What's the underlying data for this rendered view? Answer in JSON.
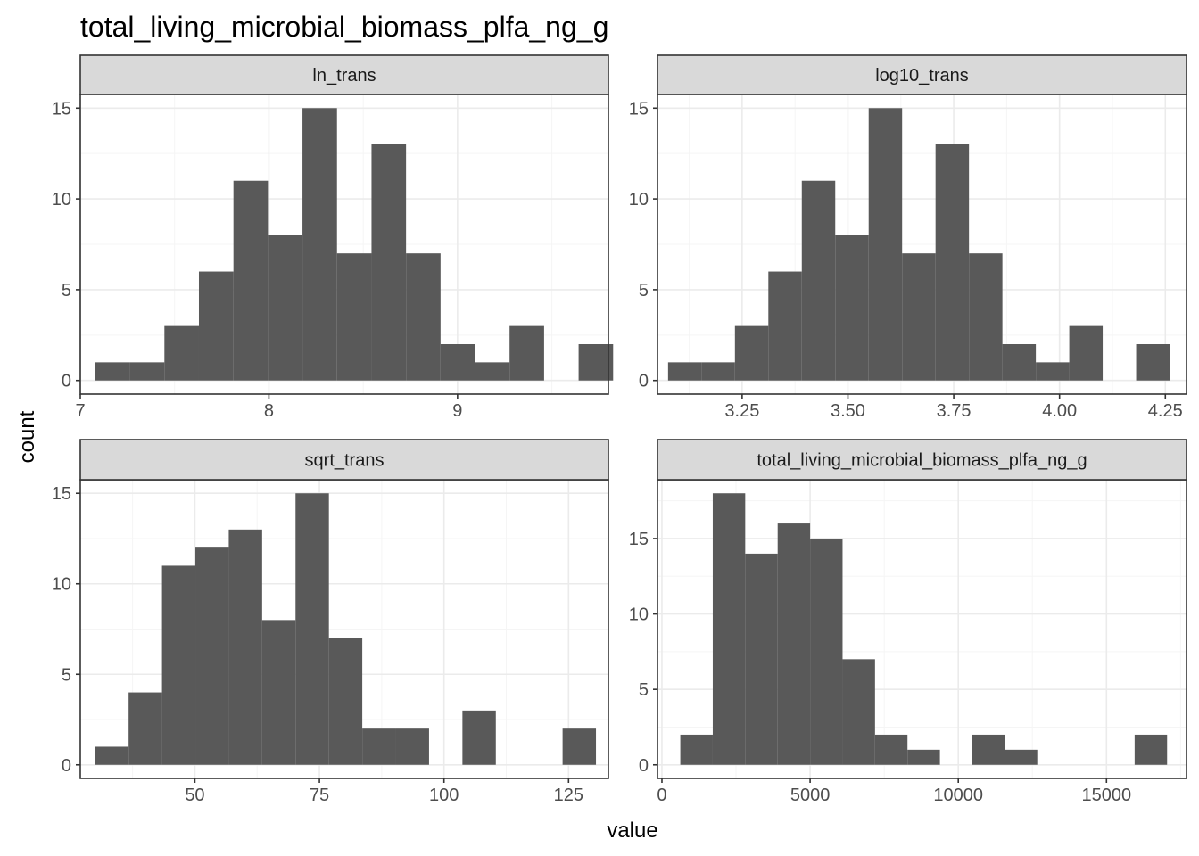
{
  "title": "total_living_microbial_biomass_plfa_ng_g",
  "xlabel": "value",
  "ylabel": "count",
  "colors": {
    "bar": "#595959",
    "strip_bg": "#d9d9d9",
    "panel_border": "#333333",
    "grid_major": "#ebebeb",
    "grid_minor": "#f5f5f5",
    "tick_text": "#4d4d4d",
    "text": "#000000"
  },
  "chart_data": [
    {
      "type": "bar",
      "facet": "ln_trans",
      "xlim": [
        7.0,
        9.8
      ],
      "ylim": [
        0,
        15
      ],
      "x_ticks": [
        7,
        8,
        9
      ],
      "x_tick_labels": [
        "7",
        "8",
        "9"
      ],
      "y_ticks": [
        0,
        5,
        10,
        15
      ],
      "y_tick_labels": [
        "0",
        "5",
        "10",
        "15"
      ],
      "bin_edges": [
        7.08,
        7.263,
        7.446,
        7.629,
        7.812,
        7.995,
        8.178,
        8.361,
        8.544,
        8.727,
        8.91,
        9.093,
        9.276,
        9.459,
        9.642,
        9.825
      ],
      "counts": [
        1,
        1,
        3,
        6,
        11,
        8,
        15,
        7,
        13,
        7,
        2,
        1,
        3,
        0,
        2
      ]
    },
    {
      "type": "bar",
      "facet": "log10_trans",
      "xlim": [
        3.05,
        4.3
      ],
      "ylim": [
        0,
        15
      ],
      "x_ticks": [
        3.25,
        3.5,
        3.75,
        4.0,
        4.25
      ],
      "x_tick_labels": [
        "3.25",
        "3.50",
        "3.75",
        "4.00",
        "4.25"
      ],
      "y_ticks": [
        0,
        5,
        10,
        15
      ],
      "y_tick_labels": [
        "0",
        "5",
        "10",
        "15"
      ],
      "bin_edges": [
        3.075,
        3.154,
        3.233,
        3.312,
        3.391,
        3.47,
        3.549,
        3.628,
        3.707,
        3.786,
        3.865,
        3.944,
        4.023,
        4.102,
        4.181,
        4.26
      ],
      "counts": [
        1,
        1,
        3,
        6,
        11,
        8,
        15,
        7,
        13,
        7,
        2,
        1,
        3,
        0,
        2
      ]
    },
    {
      "type": "bar",
      "facet": "sqrt_trans",
      "xlim": [
        27.0,
        133.0
      ],
      "ylim": [
        0,
        15
      ],
      "x_ticks": [
        50,
        75,
        100,
        125
      ],
      "x_tick_labels": [
        "50",
        "75",
        "100",
        "125"
      ],
      "y_ticks": [
        0,
        5,
        10,
        15
      ],
      "y_tick_labels": [
        "0",
        "5",
        "10",
        "15"
      ],
      "bin_edges": [
        30.0,
        36.7,
        43.4,
        50.1,
        56.8,
        63.5,
        70.2,
        76.9,
        83.6,
        90.3,
        97.0,
        103.7,
        110.4,
        117.1,
        123.8,
        130.5
      ],
      "counts": [
        1,
        4,
        11,
        12,
        13,
        8,
        15,
        7,
        2,
        2,
        0,
        3,
        0,
        0,
        2
      ]
    },
    {
      "type": "bar",
      "facet": "total_living_microbial_biomass_plfa_ng_g",
      "xlim": [
        -150,
        17700
      ],
      "ylim": [
        0,
        18
      ],
      "x_ticks": [
        0,
        5000,
        10000,
        15000
      ],
      "x_tick_labels": [
        "0",
        "5000",
        "10000",
        "15000"
      ],
      "y_ticks": [
        0,
        5,
        10,
        15
      ],
      "y_tick_labels": [
        "0",
        "5",
        "10",
        "15"
      ],
      "bin_edges": [
        620,
        1715,
        2810,
        3905,
        5000,
        6095,
        7190,
        8285,
        9380,
        10475,
        11570,
        12665,
        13760,
        14855,
        15950,
        17045
      ],
      "counts": [
        2,
        18,
        14,
        16,
        15,
        7,
        2,
        1,
        0,
        2,
        1,
        0,
        0,
        0,
        2
      ]
    }
  ]
}
